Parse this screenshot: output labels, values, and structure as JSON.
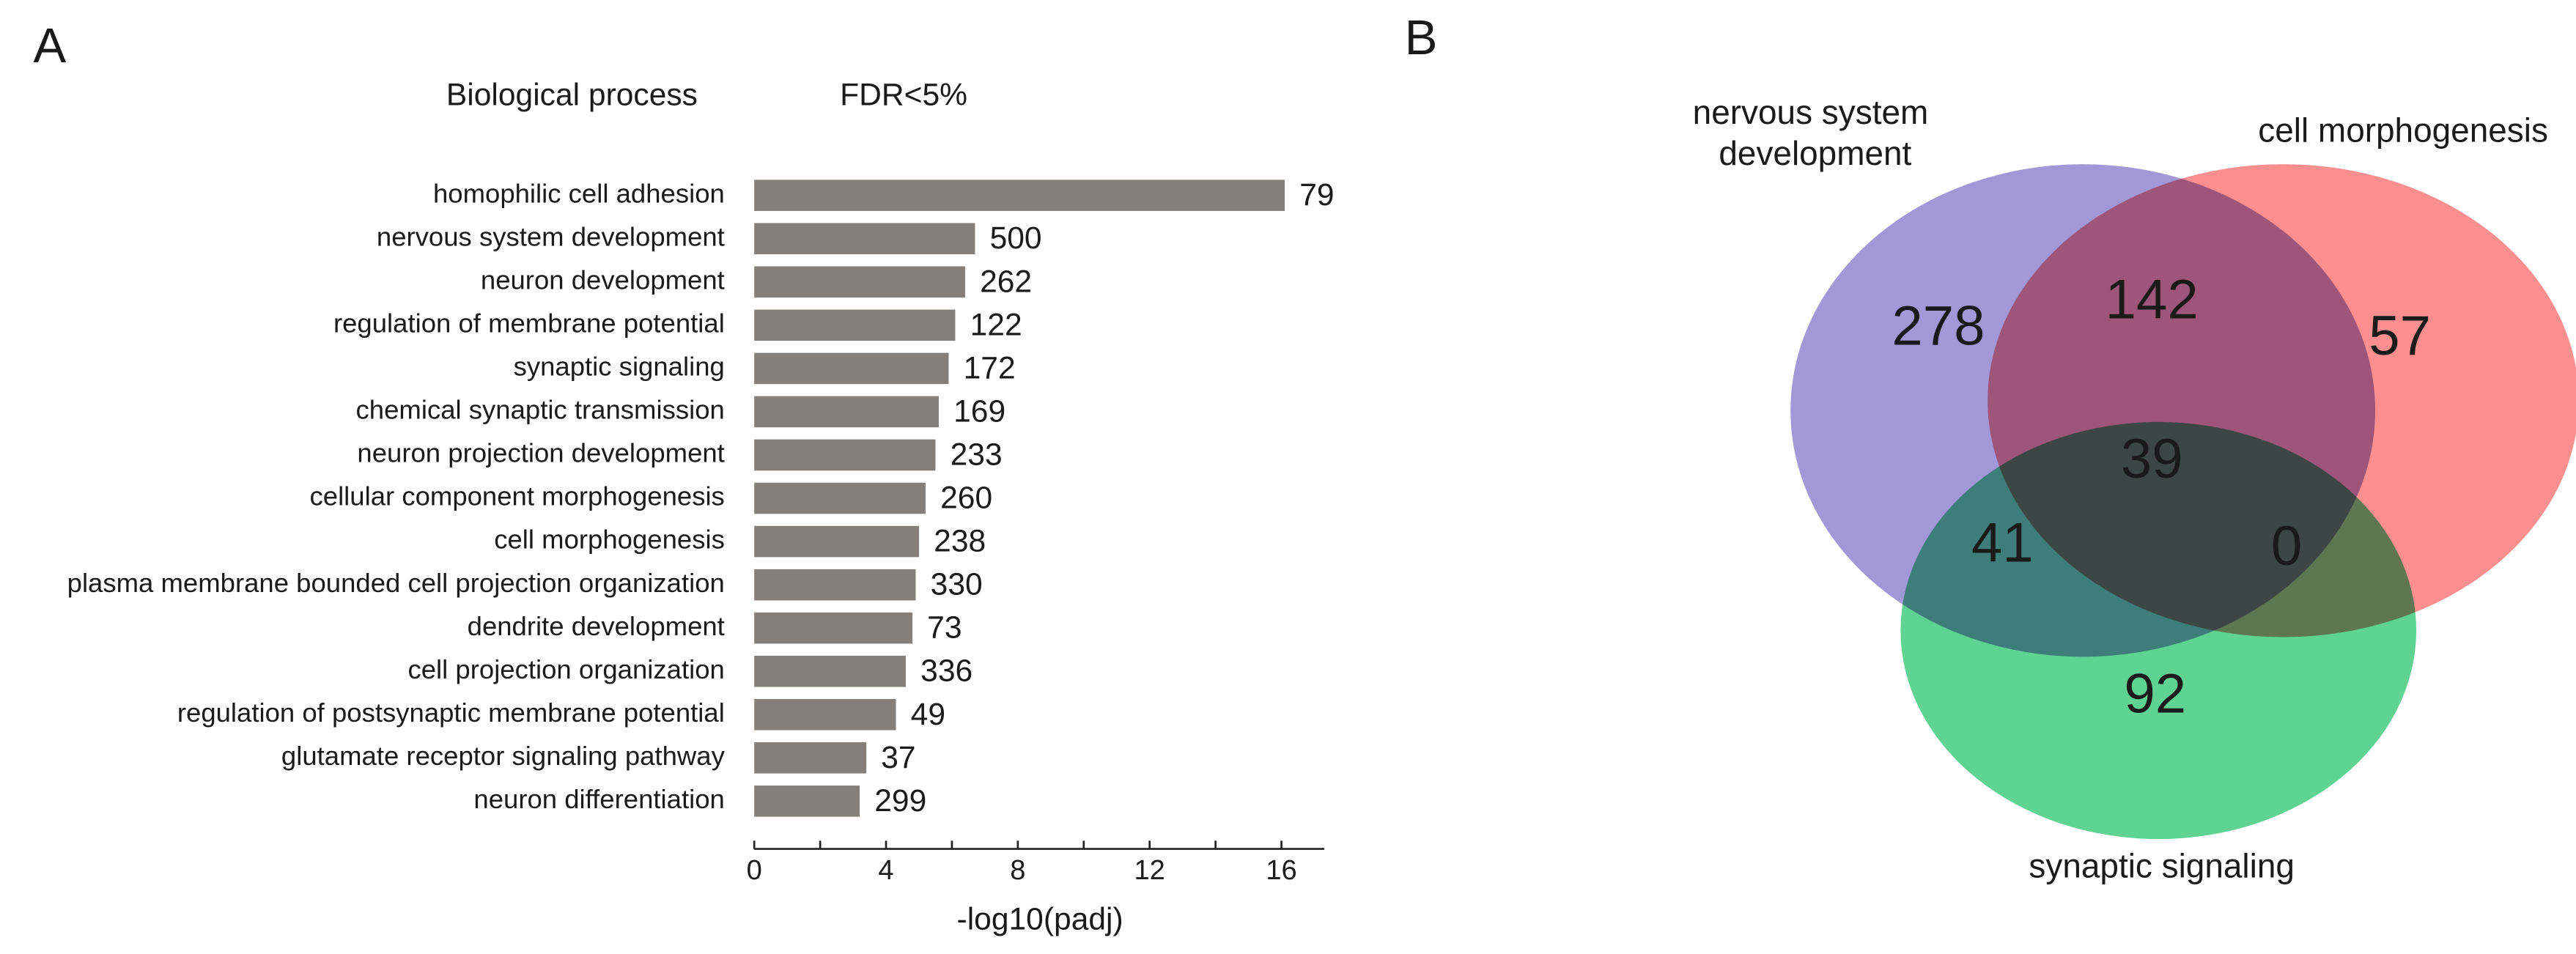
{
  "panels": [
    "A",
    "B"
  ],
  "chart_data": [
    {
      "type": "barh",
      "header_left": "Biological process",
      "header_right": "FDR<5%",
      "x_label": "-log10(padj)",
      "categories": [
        "homophilic cell adhesion",
        "nervous system development",
        "neuron development",
        "regulation of membrane potential",
        "synaptic signaling",
        "chemical synaptic transmission",
        "neuron projection development",
        "cellular component morphogenesis",
        "cell morphogenesis",
        "plasma membrane bounded cell projection organization",
        "dendrite development",
        "cell projection organization",
        "regulation of postsynaptic membrane potential",
        "glutamate receptor signaling pathway",
        "neuron differentiation"
      ],
      "values": [
        16.1,
        6.7,
        6.4,
        6.1,
        5.9,
        5.6,
        5.5,
        5.2,
        5.0,
        4.9,
        4.8,
        4.6,
        4.3,
        3.4,
        3.2
      ],
      "counts": [
        79,
        500,
        262,
        122,
        172,
        169,
        233,
        260,
        238,
        330,
        73,
        336,
        49,
        37,
        299
      ],
      "color": "#857f7c",
      "xlim": [
        0,
        17.3
      ],
      "xticks": [
        0,
        4,
        8,
        12,
        16
      ],
      "xminorticks": [
        2,
        6,
        10,
        14
      ]
    },
    {
      "type": "venn",
      "sets": [
        {
          "name": "nervous system development",
          "color": "#a298d8"
        },
        {
          "name": "cell morphogenesis",
          "color": "#fb8f8f"
        },
        {
          "name": "synaptic signaling",
          "color": "#5fd391"
        }
      ],
      "regions": [
        {
          "sets": [
            0
          ],
          "value": 278
        },
        {
          "sets": [
            0,
            1
          ],
          "value": 142
        },
        {
          "sets": [
            1
          ],
          "value": 57
        },
        {
          "sets": [
            0,
            1,
            2
          ],
          "value": 39
        },
        {
          "sets": [
            0,
            2
          ],
          "value": 41
        },
        {
          "sets": [
            1,
            2
          ],
          "value": 0
        },
        {
          "sets": [
            2
          ],
          "value": 92
        }
      ]
    }
  ]
}
